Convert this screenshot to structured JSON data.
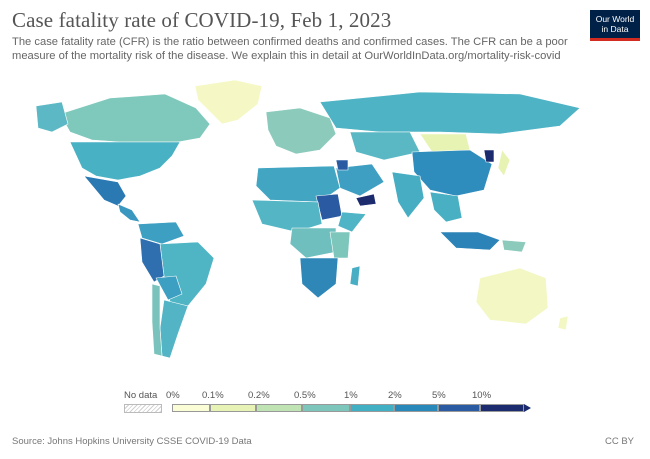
{
  "header": {
    "title": "Case fatality rate of COVID-19, Feb 1, 2023",
    "subtitle_line1": "The case fatality rate (CFR) is the ratio between confirmed deaths and confirmed cases. The CFR can be a poor",
    "subtitle_line2": "measure of the mortality risk of the disease. We explain this in detail at OurWorldInData.org/mortality-risk-covid"
  },
  "logo": {
    "line1": "Our World",
    "line2": "in Data"
  },
  "legend": {
    "no_data_label": "No data",
    "ticks": [
      "0%",
      "0.1%",
      "0.2%",
      "0.5%",
      "1%",
      "2%",
      "5%",
      "10%"
    ],
    "colors": [
      "#fbfdd6",
      "#e6f3b5",
      "#bfe3b2",
      "#7cc6bb",
      "#41b0c5",
      "#2888b9",
      "#2a5aa2",
      "#1c2b6e"
    ],
    "no_data_color": "#dddddd"
  },
  "footer": {
    "source": "Source: Johns Hopkins University CSSE COVID-19 Data",
    "license": "CC BY"
  }
}
